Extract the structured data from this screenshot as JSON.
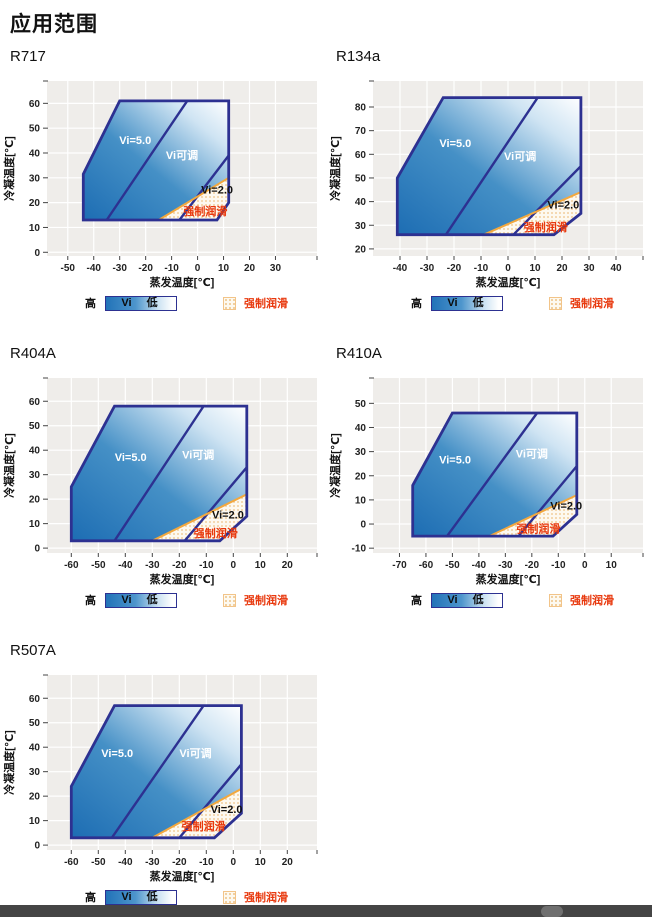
{
  "page": {
    "title": "应用范围"
  },
  "legend": {
    "high": "高",
    "vi": "Vi",
    "low": "低",
    "forced_lube": "强制润滑"
  },
  "colors": {
    "region_border": "#2d3191",
    "fill_dark": "#1d6db3",
    "fill_mid": "#4590c6",
    "fill_pale": "#cfe4f3",
    "fill_light": "#ffffff",
    "plot_bg": "#efedea",
    "grid": "#ffffff",
    "lube_line": "#f3a83e",
    "lube_dot": "#edc286",
    "lube_bg": "#fdf9f0",
    "label_white": "#ffffff",
    "label_dark": "#111111",
    "label_red": "#e8380d",
    "tick_text": "#222222"
  },
  "chart_data": [
    {
      "type": "area",
      "title": "R717",
      "xlabel": "蒸发温度[℃]",
      "ylabel": "冷凝温度[℃]",
      "xlim": [
        -58,
        46
      ],
      "ylim": [
        -1.5,
        69
      ],
      "xticks": [
        -50,
        -40,
        -30,
        -20,
        -10,
        0,
        10,
        20,
        30
      ],
      "yticks": [
        0,
        10,
        20,
        30,
        40,
        50,
        60
      ],
      "outer_region": [
        [
          -44,
          13
        ],
        [
          -44,
          31.5
        ],
        [
          -30,
          61
        ],
        [
          12,
          61
        ],
        [
          12,
          20
        ],
        [
          7.5,
          13
        ]
      ],
      "vi_adjust_boundary": [
        [
          -35,
          13
        ],
        [
          -4,
          61
        ]
      ],
      "vi2_boundary": [
        [
          -7,
          13
        ],
        [
          12,
          39
        ]
      ],
      "forced_lube_line": [
        [
          -15,
          13
        ],
        [
          12,
          30
        ]
      ],
      "forced_lube_region": [
        [
          -15,
          13
        ],
        [
          12,
          30
        ],
        [
          12,
          20
        ],
        [
          7.5,
          13
        ]
      ],
      "labels": [
        {
          "text": "Vi=5.0",
          "x": -24,
          "y": 45,
          "style": "white"
        },
        {
          "text": "Vi可调",
          "x": -6,
          "y": 39,
          "style": "white"
        },
        {
          "text": "Vi=2.0",
          "x": 7.5,
          "y": 25,
          "style": "dark"
        },
        {
          "text": "强制润滑",
          "x": 3,
          "y": 16.5,
          "style": "red"
        }
      ]
    },
    {
      "type": "area",
      "title": "R134a",
      "xlabel": "蒸发温度[℃]",
      "ylabel": "冷凝温度[℃]",
      "xlim": [
        -50,
        50
      ],
      "ylim": [
        17,
        91
      ],
      "xticks": [
        -40,
        -30,
        -20,
        -10,
        0,
        10,
        20,
        30,
        40
      ],
      "yticks": [
        20,
        30,
        40,
        50,
        60,
        70,
        80
      ],
      "outer_region": [
        [
          -41,
          26
        ],
        [
          -41,
          50
        ],
        [
          -24,
          84
        ],
        [
          27,
          84
        ],
        [
          27,
          35
        ],
        [
          17,
          26
        ]
      ],
      "vi_adjust_boundary": [
        [
          -23,
          26
        ],
        [
          11,
          84
        ]
      ],
      "vi2_boundary": [
        [
          2,
          26
        ],
        [
          27,
          55
        ]
      ],
      "forced_lube_line": [
        [
          -9,
          26
        ],
        [
          27,
          44
        ]
      ],
      "forced_lube_region": [
        [
          -9,
          26
        ],
        [
          27,
          44
        ],
        [
          27,
          35
        ],
        [
          17,
          26
        ]
      ],
      "labels": [
        {
          "text": "Vi=5.0",
          "x": -19.5,
          "y": 64.5,
          "style": "white"
        },
        {
          "text": "Vi可调",
          "x": 4.5,
          "y": 59,
          "style": "white"
        },
        {
          "text": "Vi=2.0",
          "x": 20.5,
          "y": 38.5,
          "style": "dark"
        },
        {
          "text": "强制润滑",
          "x": 14,
          "y": 29,
          "style": "red"
        }
      ]
    },
    {
      "type": "area",
      "title": "R404A",
      "xlabel": "蒸发温度[℃]",
      "ylabel": "冷凝温度[℃]",
      "xlim": [
        -69,
        31
      ],
      "ylim": [
        -2,
        69.5
      ],
      "xticks": [
        -60,
        -50,
        -40,
        -30,
        -20,
        -10,
        0,
        10,
        20
      ],
      "yticks": [
        0,
        10,
        20,
        30,
        40,
        50,
        60
      ],
      "outer_region": [
        [
          -60,
          3
        ],
        [
          -60,
          25
        ],
        [
          -44,
          58
        ],
        [
          5,
          58
        ],
        [
          5,
          13
        ],
        [
          -5,
          3
        ]
      ],
      "vi_adjust_boundary": [
        [
          -44,
          3
        ],
        [
          -11,
          58
        ]
      ],
      "vi2_boundary": [
        [
          -18,
          3
        ],
        [
          5,
          33
        ]
      ],
      "forced_lube_line": [
        [
          -30,
          3
        ],
        [
          5,
          22
        ]
      ],
      "forced_lube_region": [
        [
          -30,
          3
        ],
        [
          5,
          22
        ],
        [
          5,
          13
        ],
        [
          -5,
          3
        ]
      ],
      "labels": [
        {
          "text": "Vi=5.0",
          "x": -38,
          "y": 37,
          "style": "white"
        },
        {
          "text": "Vi可调",
          "x": -13,
          "y": 38,
          "style": "white"
        },
        {
          "text": "Vi=2.0",
          "x": -2,
          "y": 13.5,
          "style": "dark"
        },
        {
          "text": "强制润滑",
          "x": -6.5,
          "y": 6,
          "style": "red"
        }
      ]
    },
    {
      "type": "area",
      "title": "R410A",
      "xlabel": "蒸发温度[℃]",
      "ylabel": "冷凝温度[℃]",
      "xlim": [
        -80,
        22
      ],
      "ylim": [
        -12,
        60.5
      ],
      "xticks": [
        -70,
        -60,
        -50,
        -40,
        -30,
        -20,
        -10,
        0,
        10
      ],
      "yticks": [
        -10,
        0,
        10,
        20,
        30,
        40,
        50
      ],
      "outer_region": [
        [
          -65,
          -5
        ],
        [
          -65,
          16
        ],
        [
          -50,
          46
        ],
        [
          -3,
          46
        ],
        [
          -3,
          4
        ],
        [
          -12,
          -5
        ]
      ],
      "vi_adjust_boundary": [
        [
          -52,
          -5
        ],
        [
          -18,
          46
        ]
      ],
      "vi2_boundary": [
        [
          -25,
          -5
        ],
        [
          -3,
          24
        ]
      ],
      "forced_lube_line": [
        [
          -36,
          -5
        ],
        [
          -3,
          12
        ]
      ],
      "forced_lube_region": [
        [
          -36,
          -5
        ],
        [
          -3,
          12
        ],
        [
          -3,
          4
        ],
        [
          -12,
          -5
        ]
      ],
      "labels": [
        {
          "text": "Vi=5.0",
          "x": -49,
          "y": 26.5,
          "style": "white"
        },
        {
          "text": "Vi可调",
          "x": -20,
          "y": 29,
          "style": "white"
        },
        {
          "text": "Vi=2.0",
          "x": -7,
          "y": 7.5,
          "style": "dark"
        },
        {
          "text": "强制润滑",
          "x": -17.5,
          "y": -2,
          "style": "red"
        }
      ]
    },
    {
      "type": "area",
      "title": "R507A",
      "xlabel": "蒸发温度[℃]",
      "ylabel": "冷凝温度[℃]",
      "xlim": [
        -69,
        31
      ],
      "ylim": [
        -2,
        69.5
      ],
      "xticks": [
        -60,
        -50,
        -40,
        -30,
        -20,
        -10,
        0,
        10,
        20
      ],
      "yticks": [
        0,
        10,
        20,
        30,
        40,
        50,
        60
      ],
      "outer_region": [
        [
          -60,
          3
        ],
        [
          -60,
          24
        ],
        [
          -44,
          57
        ],
        [
          3,
          57
        ],
        [
          3,
          13
        ],
        [
          -7,
          3
        ]
      ],
      "vi_adjust_boundary": [
        [
          -45,
          3
        ],
        [
          -11,
          57
        ]
      ],
      "vi2_boundary": [
        [
          -20,
          3
        ],
        [
          3,
          33
        ]
      ],
      "forced_lube_line": [
        [
          -30,
          3
        ],
        [
          3,
          23
        ]
      ],
      "forced_lube_region": [
        [
          -30,
          3
        ],
        [
          3,
          23
        ],
        [
          3,
          13
        ],
        [
          -7,
          3
        ]
      ],
      "labels": [
        {
          "text": "Vi=5.0",
          "x": -43,
          "y": 37.5,
          "style": "white"
        },
        {
          "text": "Vi可调",
          "x": -14,
          "y": 37.5,
          "style": "white"
        },
        {
          "text": "Vi=2.0",
          "x": -2.5,
          "y": 14.5,
          "style": "dark"
        },
        {
          "text": "强制润滑",
          "x": -11,
          "y": 7.5,
          "style": "red"
        }
      ]
    }
  ]
}
